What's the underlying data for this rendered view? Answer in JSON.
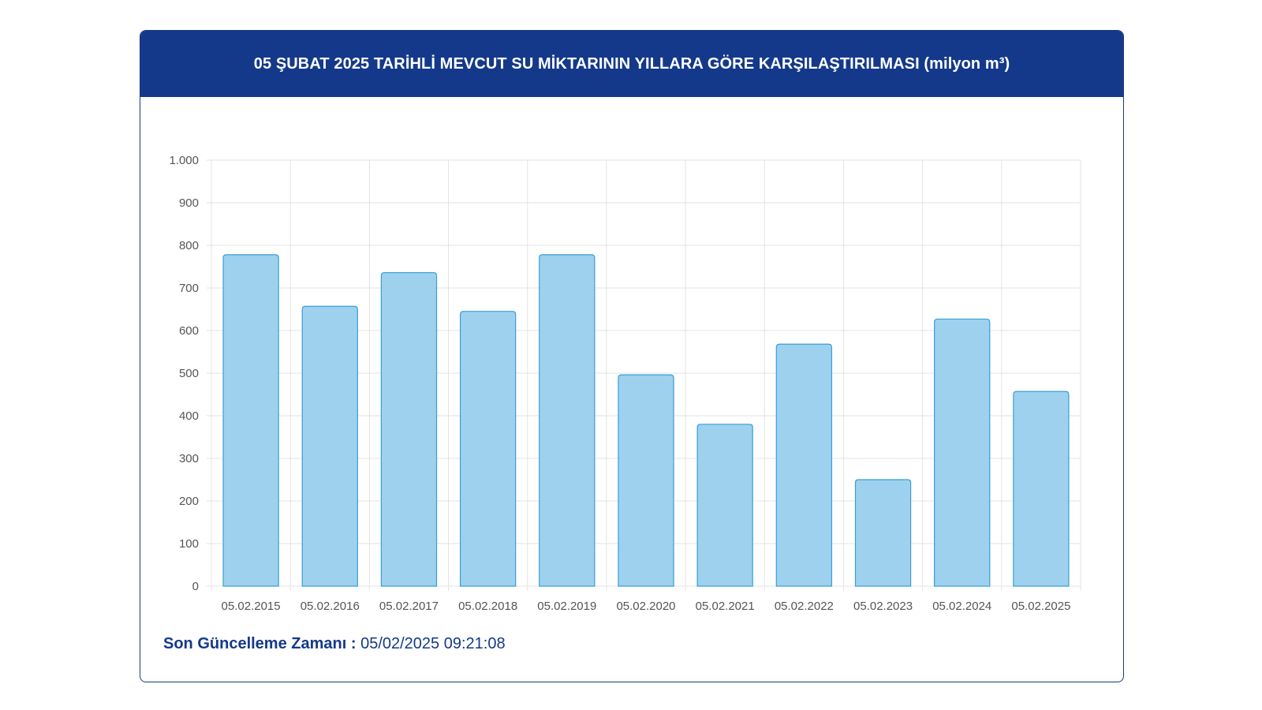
{
  "header": {
    "title": "05 ŞUBAT 2025 TARİHLİ MEVCUT SU MİKTARININ YILLARA GÖRE KARŞILAŞTIRILMASI (milyon m³)"
  },
  "chart_data": {
    "type": "bar",
    "title": "05 ŞUBAT 2025 TARİHLİ MEVCUT SU MİKTARININ YILLARA GÖRE KARŞILAŞTIRILMASI (milyon m³)",
    "xlabel": "",
    "ylabel": "",
    "categories": [
      "05.02.2015",
      "05.02.2016",
      "05.02.2017",
      "05.02.2018",
      "05.02.2019",
      "05.02.2020",
      "05.02.2021",
      "05.02.2022",
      "05.02.2023",
      "05.02.2024",
      "05.02.2025"
    ],
    "values": [
      778,
      657,
      736,
      645,
      778,
      496,
      380,
      568,
      250,
      627,
      457
    ],
    "ylim": [
      0,
      1000
    ],
    "y_ticks": [
      0,
      100,
      200,
      300,
      400,
      500,
      600,
      700,
      800,
      900,
      1000
    ],
    "y_tick_labels": [
      "0",
      "100",
      "200",
      "300",
      "400",
      "500",
      "600",
      "700",
      "800",
      "900",
      "1.000"
    ],
    "grid": true,
    "bar_fill": "#9dd1ee",
    "bar_stroke": "#3a9fd4",
    "grid_color": "#e3e3e3"
  },
  "footer": {
    "label": "Son Güncelleme Zamanı :",
    "value": "05/02/2025 09:21:08"
  },
  "colors": {
    "header_bg": "#14398a",
    "accent": "#14398a"
  }
}
